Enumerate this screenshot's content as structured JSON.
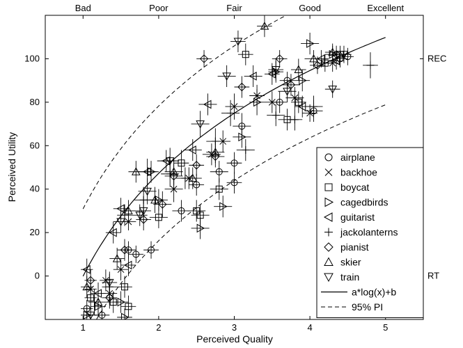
{
  "chart_data": {
    "type": "scatter",
    "title": "",
    "xlabel": "Perceived Quality",
    "ylabel": "Perceived Utility",
    "xlim": [
      0.5,
      5.5
    ],
    "ylim": [
      -20,
      120
    ],
    "xticks": [
      1,
      2,
      3,
      4,
      5
    ],
    "yticks": [
      0,
      20,
      40,
      60,
      80,
      100
    ],
    "top_axis_labels": [
      {
        "x": 1,
        "label": "Bad"
      },
      {
        "x": 2,
        "label": "Poor"
      },
      {
        "x": 3,
        "label": "Fair"
      },
      {
        "x": 4,
        "label": "Good"
      },
      {
        "x": 5,
        "label": "Excellent"
      }
    ],
    "right_axis_labels": [
      {
        "y": 0,
        "label": "RT"
      },
      {
        "y": 100,
        "label": "REC"
      }
    ],
    "legend_position": "lower-right",
    "grid": false,
    "series": [
      {
        "name": "airplane",
        "marker": "circle",
        "points": [
          [
            1.05,
            -15,
            0.08,
            4
          ],
          [
            1.25,
            -18,
            0.1,
            4
          ],
          [
            1.7,
            10,
            0.1,
            4
          ],
          [
            1.9,
            12,
            0.1,
            4
          ],
          [
            2.3,
            30,
            0.12,
            5
          ],
          [
            2.5,
            42,
            0.1,
            5
          ],
          [
            2.8,
            48,
            0.12,
            5
          ],
          [
            3.0,
            52,
            0.1,
            5
          ],
          [
            3.0,
            43,
            0.1,
            5
          ],
          [
            3.1,
            69,
            0.12,
            6
          ],
          [
            3.6,
            80,
            0.1,
            5
          ],
          [
            3.7,
            90,
            0.1,
            4
          ],
          [
            4.05,
            76,
            0.12,
            5
          ],
          [
            4.4,
            100,
            0.1,
            4
          ],
          [
            4.5,
            101,
            0.08,
            4
          ],
          [
            1.6,
            12,
            0.1,
            4
          ]
        ]
      },
      {
        "name": "backhoe",
        "marker": "x",
        "points": [
          [
            1.1,
            -6,
            0.08,
            5
          ],
          [
            1.3,
            -2,
            0.08,
            5
          ],
          [
            1.5,
            3,
            0.1,
            5
          ],
          [
            1.6,
            25,
            0.1,
            4
          ],
          [
            2.2,
            40,
            0.12,
            6
          ],
          [
            2.4,
            45,
            0.1,
            5
          ],
          [
            2.7,
            56,
            0.12,
            5
          ],
          [
            2.85,
            62,
            0.1,
            5
          ],
          [
            3.0,
            78,
            0.12,
            6
          ],
          [
            3.3,
            83,
            0.1,
            5
          ],
          [
            3.5,
            80,
            0.1,
            5
          ],
          [
            3.8,
            82,
            0.12,
            5
          ],
          [
            4.0,
            75,
            0.1,
            4
          ],
          [
            4.3,
            98,
            0.1,
            4
          ],
          [
            1.35,
            -8,
            0.1,
            5
          ]
        ]
      },
      {
        "name": "boycat",
        "marker": "square",
        "points": [
          [
            1.1,
            -10,
            0.08,
            5
          ],
          [
            1.4,
            -12,
            0.1,
            5
          ],
          [
            1.55,
            -5,
            0.1,
            5
          ],
          [
            1.6,
            -14,
            0.1,
            5
          ],
          [
            2.0,
            27,
            0.12,
            5
          ],
          [
            2.3,
            52,
            0.1,
            6
          ],
          [
            2.55,
            28,
            0.12,
            5
          ],
          [
            2.8,
            40,
            0.12,
            5
          ],
          [
            3.15,
            102,
            0.1,
            5
          ],
          [
            3.7,
            72,
            0.12,
            5
          ],
          [
            3.85,
            80,
            0.1,
            5
          ],
          [
            4.2,
            98,
            0.1,
            4
          ],
          [
            4.4,
            102,
            0.1,
            4
          ],
          [
            2.5,
            30,
            0.12,
            5
          ]
        ]
      },
      {
        "name": "cagedbirds",
        "marker": "triangle-right",
        "points": [
          [
            1.05,
            -18,
            0.08,
            4
          ],
          [
            1.2,
            -14,
            0.1,
            5
          ],
          [
            1.5,
            -12,
            0.1,
            5
          ],
          [
            1.55,
            -19,
            0.1,
            4
          ],
          [
            2.0,
            35,
            0.12,
            5
          ],
          [
            2.55,
            22,
            0.12,
            5
          ],
          [
            2.85,
            32,
            0.12,
            5
          ],
          [
            3.1,
            64,
            0.12,
            5
          ],
          [
            3.3,
            80,
            0.1,
            6
          ],
          [
            3.55,
            94,
            0.1,
            5
          ],
          [
            3.9,
            90,
            0.1,
            5
          ],
          [
            4.0,
            107,
            0.12,
            5
          ],
          [
            4.3,
            102,
            0.1,
            4
          ],
          [
            1.9,
            48,
            0.1,
            5
          ]
        ]
      },
      {
        "name": "guitarist",
        "marker": "triangle-left",
        "points": [
          [
            1.05,
            3,
            0.08,
            5
          ],
          [
            1.2,
            -8,
            0.1,
            5
          ],
          [
            1.4,
            20,
            0.1,
            5
          ],
          [
            1.5,
            31,
            0.1,
            5
          ],
          [
            1.6,
            5,
            0.1,
            5
          ],
          [
            1.85,
            48,
            0.12,
            6
          ],
          [
            2.1,
            53,
            0.12,
            5
          ],
          [
            2.45,
            58,
            0.12,
            5
          ],
          [
            2.65,
            79,
            0.12,
            5
          ],
          [
            3.25,
            92,
            0.12,
            5
          ],
          [
            3.5,
            93,
            0.1,
            5
          ],
          [
            3.9,
            78,
            0.1,
            5
          ],
          [
            4.15,
            100,
            0.1,
            4
          ],
          [
            4.35,
            99,
            0.1,
            4
          ]
        ]
      },
      {
        "name": "jackolanterns",
        "marker": "plus",
        "points": [
          [
            1.15,
            -12,
            0.08,
            6
          ],
          [
            1.35,
            -5,
            0.1,
            6
          ],
          [
            1.55,
            28,
            0.1,
            5
          ],
          [
            1.8,
            35,
            0.12,
            6
          ],
          [
            2.15,
            47,
            0.12,
            6
          ],
          [
            2.35,
            45,
            0.12,
            5
          ],
          [
            2.95,
            75,
            0.12,
            6
          ],
          [
            3.15,
            58,
            0.12,
            5
          ],
          [
            3.55,
            74,
            0.12,
            5
          ],
          [
            3.8,
            72,
            0.1,
            5
          ],
          [
            4.05,
            78,
            0.12,
            5
          ],
          [
            4.8,
            97,
            0.1,
            6
          ],
          [
            2.75,
            62,
            0.12,
            6
          ]
        ]
      },
      {
        "name": "pianist",
        "marker": "diamond",
        "points": [
          [
            1.1,
            -2,
            0.08,
            5
          ],
          [
            1.35,
            -10,
            0.1,
            5
          ],
          [
            1.8,
            26,
            0.1,
            5
          ],
          [
            2.05,
            33,
            0.12,
            6
          ],
          [
            2.2,
            46,
            0.12,
            6
          ],
          [
            2.5,
            51,
            0.1,
            5
          ],
          [
            2.6,
            100,
            0.1,
            4
          ],
          [
            2.75,
            55,
            0.12,
            5
          ],
          [
            3.1,
            87,
            0.1,
            5
          ],
          [
            3.6,
            100,
            0.1,
            4
          ],
          [
            3.75,
            88,
            0.12,
            5
          ],
          [
            4.1,
            97,
            0.1,
            4
          ],
          [
            4.35,
            102,
            0.1,
            4
          ],
          [
            1.55,
            12,
            0.1,
            5
          ]
        ]
      },
      {
        "name": "skier",
        "marker": "triangle-up",
        "points": [
          [
            1.05,
            -5,
            0.08,
            5
          ],
          [
            1.2,
            -12,
            0.1,
            5
          ],
          [
            1.45,
            8,
            0.1,
            5
          ],
          [
            1.6,
            30,
            0.1,
            5
          ],
          [
            1.95,
            35,
            0.12,
            6
          ],
          [
            2.2,
            48,
            0.12,
            6
          ],
          [
            2.45,
            45,
            0.12,
            5
          ],
          [
            2.75,
            57,
            0.12,
            5
          ],
          [
            3.4,
            115,
            0.1,
            5
          ],
          [
            3.85,
            95,
            0.1,
            5
          ],
          [
            4.05,
            100,
            0.12,
            4
          ],
          [
            4.3,
            103,
            0.1,
            4
          ],
          [
            1.7,
            48,
            0.1,
            5
          ]
        ]
      },
      {
        "name": "train",
        "marker": "triangle-down",
        "points": [
          [
            1.1,
            -18,
            0.08,
            4
          ],
          [
            1.35,
            -3,
            0.1,
            5
          ],
          [
            1.5,
            25,
            0.1,
            5
          ],
          [
            1.75,
            28,
            0.1,
            5
          ],
          [
            1.85,
            39,
            0.12,
            6
          ],
          [
            2.15,
            53,
            0.12,
            6
          ],
          [
            2.55,
            70,
            0.12,
            6
          ],
          [
            2.9,
            92,
            0.12,
            5
          ],
          [
            3.05,
            108,
            0.1,
            5
          ],
          [
            3.55,
            95,
            0.1,
            5
          ],
          [
            3.7,
            85,
            0.12,
            5
          ],
          [
            4.3,
            86,
            0.1,
            4
          ],
          [
            4.45,
            102,
            0.1,
            4
          ],
          [
            1.8,
            30,
            0.1,
            5
          ]
        ]
      }
    ],
    "fit": {
      "name": "a*log(x)+b",
      "a": 68.3,
      "b": -0.1,
      "style": "solid"
    },
    "prediction_interval": {
      "name": "95% PI",
      "offset": 31,
      "style": "dashed"
    }
  }
}
